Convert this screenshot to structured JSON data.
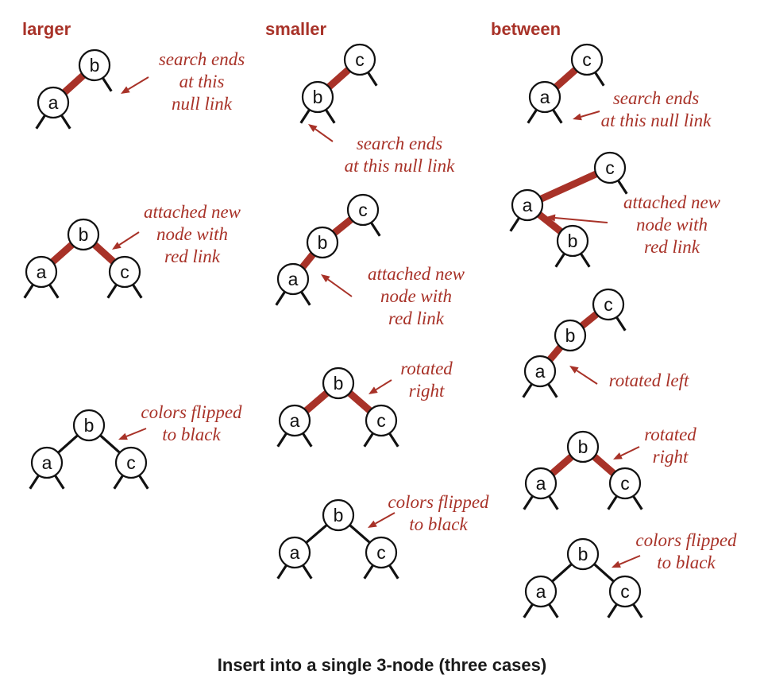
{
  "colors": {
    "red_link": "#a83228",
    "black_link": "#111111",
    "annotation": "#a83228",
    "node_fill": "#ffffff"
  },
  "columns": [
    {
      "heading": "larger",
      "steps": [
        {
          "note": [
            "search ends",
            "at this",
            "null link"
          ]
        },
        {
          "note": [
            "attached new",
            "node with",
            "red link"
          ]
        },
        {
          "note": [
            "colors flipped",
            "to black"
          ]
        }
      ]
    },
    {
      "heading": "smaller",
      "steps": [
        {
          "note": [
            "search ends",
            "at this null link"
          ]
        },
        {
          "note": [
            "attached new",
            "node with",
            "red link"
          ]
        },
        {
          "note": [
            "rotated",
            "right"
          ]
        },
        {
          "note": [
            "colors flipped",
            "to black"
          ]
        }
      ]
    },
    {
      "heading": "between",
      "steps": [
        {
          "note": [
            "search ends",
            "at this null link"
          ]
        },
        {
          "note": [
            "attached new",
            "node with",
            "red link"
          ]
        },
        {
          "note": [
            "rotated left"
          ]
        },
        {
          "note": [
            "rotated",
            "right"
          ]
        },
        {
          "note": [
            "colors flipped",
            "to black"
          ]
        }
      ]
    }
  ],
  "caption": "Insert into a single 3-node (three cases)"
}
